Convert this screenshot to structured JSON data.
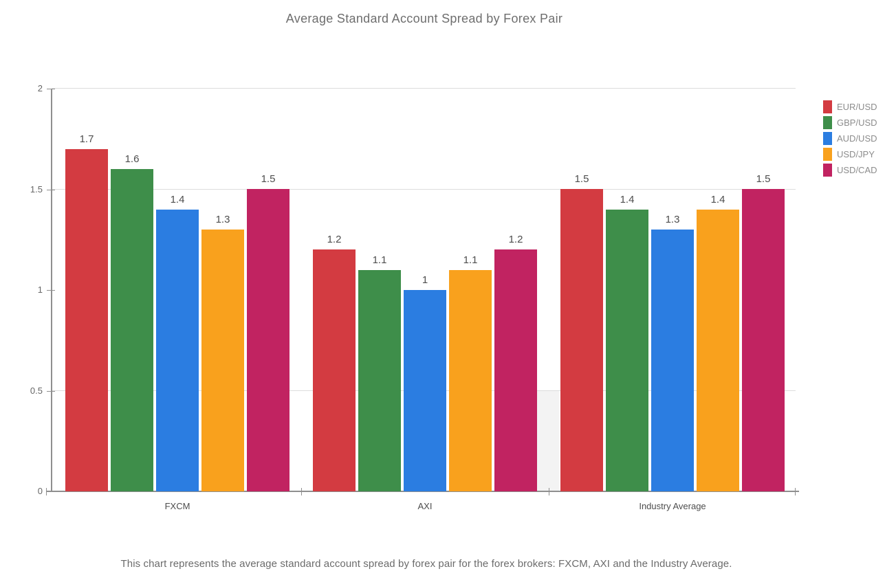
{
  "title": "Average Standard Account Spread by Forex Pair",
  "caption": "This chart represents the average standard account spread by forex pair for the forex brokers: FXCM, AXI and the Industry Average.",
  "colors": {
    "axis": "#8f8f8f",
    "gridline": "#dcdcdc",
    "hover_band": "#f3f3f3",
    "eur_usd": "#d33b41",
    "gbp_usd": "#3e8e4a",
    "aud_usd": "#2b7de1",
    "usd_jpy": "#f9a11d",
    "usd_cad": "#c12361"
  },
  "chart_data": {
    "type": "bar",
    "title": "Average Standard Account Spread by Forex Pair",
    "categories": [
      "FXCM",
      "AXI",
      "Industry Average"
    ],
    "series": [
      {
        "name": "EUR/USD",
        "color": "#d33b41",
        "values": [
          1.7,
          1.2,
          1.5
        ]
      },
      {
        "name": "GBP/USD",
        "color": "#3e8e4a",
        "values": [
          1.6,
          1.1,
          1.4
        ]
      },
      {
        "name": "AUD/USD",
        "color": "#2b7de1",
        "values": [
          1.4,
          1.0,
          1.3
        ]
      },
      {
        "name": "USD/JPY",
        "color": "#f9a11d",
        "values": [
          1.3,
          1.1,
          1.4
        ]
      },
      {
        "name": "USD/CAD",
        "color": "#c12361",
        "values": [
          1.5,
          1.2,
          1.5
        ]
      }
    ],
    "xlabel": "",
    "ylabel": "",
    "ylim": [
      0,
      2
    ],
    "yticks": [
      0,
      0.5,
      1,
      1.5,
      2
    ],
    "gridline_values": [
      0.5,
      1.5,
      2
    ],
    "bar_value_labels": [
      "1.7",
      "1.6",
      "1.4",
      "1.3",
      "1.5",
      "1.2",
      "1.1",
      "1",
      "1.1",
      "1.2",
      "1.5",
      "1.4",
      "1.3",
      "1.4",
      "1.5"
    ],
    "grid": "partial-horizontal",
    "legend_position": "right",
    "hover_band": {
      "between": [
        "AXI",
        "Industry Average"
      ],
      "below_value": 0.5
    }
  }
}
